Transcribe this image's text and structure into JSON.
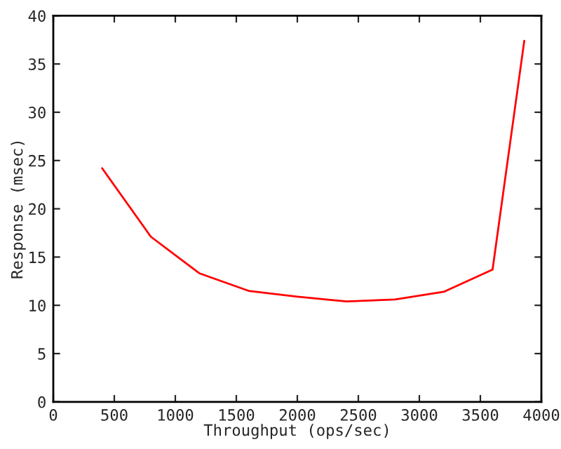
{
  "chart_data": {
    "type": "line",
    "xlabel": "Throughput (ops/sec)",
    "ylabel": "Response (msec)",
    "x": [
      400,
      800,
      1200,
      1600,
      2000,
      2400,
      2800,
      3200,
      3600,
      3860
    ],
    "series": [
      {
        "color": "#ff0000",
        "values": [
          24.2,
          17.1,
          13.3,
          11.5,
          10.9,
          10.4,
          10.6,
          11.4,
          13.7,
          37.4
        ]
      }
    ],
    "xlim": [
      0,
      4000
    ],
    "xticks": [
      0,
      500,
      1000,
      1500,
      2000,
      2500,
      3000,
      3500,
      4000
    ],
    "ylim": [
      0,
      40
    ],
    "yticks": [
      0,
      5,
      10,
      15,
      20,
      25,
      30,
      35,
      40
    ],
    "grid": false,
    "legend": false,
    "marker": "none",
    "line_style": "solid"
  }
}
